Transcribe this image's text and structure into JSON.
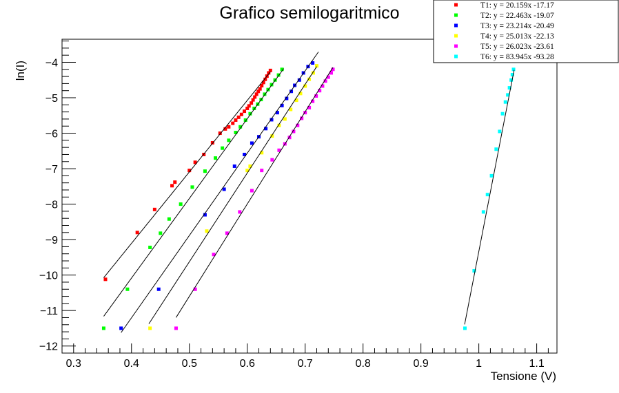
{
  "chart_data": {
    "type": "scatter",
    "title": "Grafico semilogaritmico",
    "xlabel": "Tensione (V)",
    "ylabel": "ln(I)",
    "xlim": [
      0.28,
      1.135
    ],
    "ylim": [
      -12.2,
      -3.35
    ],
    "xticks": [
      0.3,
      0.4,
      0.5,
      0.6,
      0.7,
      0.8,
      0.9,
      1.0,
      1.1
    ],
    "xtick_labels": [
      "0.3",
      "0.4",
      "0.5",
      "0.6",
      "0.7",
      "0.8",
      "0.9",
      "1",
      "1.1"
    ],
    "yticks": [
      -12,
      -11,
      -10,
      -9,
      -8,
      -7,
      -6,
      -5,
      -4
    ],
    "ytick_labels": [
      "−12",
      "−11",
      "−10",
      "−9",
      "−8",
      "−7",
      "−6",
      "−5",
      "−4"
    ],
    "grid": false,
    "legend_position": "top-right",
    "series": [
      {
        "name": "T1: y = 20.159x -17.17",
        "color": "#ff0000",
        "fit": {
          "slope": 20.159,
          "intercept": -17.17,
          "x_range": [
            0.352,
            0.64
          ]
        },
        "x": [
          0.355,
          0.41,
          0.44,
          0.47,
          0.475,
          0.5,
          0.51,
          0.525,
          0.54,
          0.553,
          0.562,
          0.568,
          0.575,
          0.58,
          0.585,
          0.59,
          0.595,
          0.6,
          0.603,
          0.607,
          0.61,
          0.613,
          0.616,
          0.619,
          0.622,
          0.625,
          0.628,
          0.631,
          0.634,
          0.637,
          0.64
        ],
        "y": [
          -10.12,
          -8.8,
          -8.15,
          -7.48,
          -7.38,
          -7.05,
          -6.82,
          -6.6,
          -6.27,
          -6.0,
          -5.88,
          -5.82,
          -5.72,
          -5.63,
          -5.55,
          -5.47,
          -5.38,
          -5.3,
          -5.23,
          -5.15,
          -5.06,
          -4.98,
          -4.9,
          -4.82,
          -4.75,
          -4.66,
          -4.57,
          -4.48,
          -4.39,
          -4.3,
          -4.23
        ]
      },
      {
        "name": "T2: y = 22.463x -19.07",
        "color": "#00ff00",
        "fit": {
          "slope": 22.463,
          "intercept": -19.07,
          "x_range": [
            0.352,
            0.663
          ]
        },
        "x": [
          0.352,
          0.393,
          0.432,
          0.45,
          0.465,
          0.485,
          0.505,
          0.527,
          0.545,
          0.557,
          0.568,
          0.58,
          0.588,
          0.597,
          0.605,
          0.612,
          0.618,
          0.624,
          0.63,
          0.636,
          0.642,
          0.648,
          0.654,
          0.66
        ],
        "y": [
          -11.5,
          -10.4,
          -9.22,
          -8.82,
          -8.42,
          -8.0,
          -7.52,
          -7.07,
          -6.7,
          -6.42,
          -6.2,
          -5.98,
          -5.82,
          -5.63,
          -5.45,
          -5.3,
          -5.18,
          -5.05,
          -4.9,
          -4.77,
          -4.63,
          -4.5,
          -4.36,
          -4.2
        ]
      },
      {
        "name": "T3: y = 23.214x -20.49",
        "color": "#0000ff",
        "fit": {
          "slope": 23.214,
          "intercept": -20.49,
          "x_range": [
            0.382,
            0.723
          ]
        },
        "x": [
          0.382,
          0.447,
          0.527,
          0.56,
          0.578,
          0.595,
          0.608,
          0.62,
          0.632,
          0.642,
          0.652,
          0.66,
          0.668,
          0.676,
          0.682,
          0.69,
          0.697,
          0.705,
          0.713
        ],
        "y": [
          -11.5,
          -10.4,
          -8.3,
          -7.58,
          -6.93,
          -6.6,
          -6.28,
          -6.1,
          -5.87,
          -5.62,
          -5.42,
          -5.22,
          -5.02,
          -4.82,
          -4.65,
          -4.5,
          -4.3,
          -4.12,
          -4.02
        ]
      },
      {
        "name": "T4: y = 25.013x -22.13",
        "color": "#ffff00",
        "fit": {
          "slope": 25.013,
          "intercept": -22.13,
          "x_range": [
            0.43,
            0.72
          ]
        },
        "x": [
          0.432,
          0.53,
          0.6,
          0.605,
          0.625,
          0.643,
          0.655,
          0.665,
          0.675,
          0.685,
          0.692,
          0.7,
          0.707,
          0.714,
          0.72
        ],
        "y": [
          -11.5,
          -8.76,
          -7.05,
          -6.93,
          -6.55,
          -6.08,
          -5.78,
          -5.6,
          -5.33,
          -5.07,
          -4.88,
          -4.67,
          -4.48,
          -4.3,
          -4.1
        ]
      },
      {
        "name": "T5: y = 26.023x -23.61",
        "color": "#ff00ff",
        "fit": {
          "slope": 26.023,
          "intercept": -23.61,
          "x_range": [
            0.477,
            0.748
          ]
        },
        "x": [
          0.477,
          0.51,
          0.542,
          0.565,
          0.587,
          0.608,
          0.625,
          0.643,
          0.655,
          0.665,
          0.673,
          0.68,
          0.687,
          0.694,
          0.7,
          0.707,
          0.713,
          0.719,
          0.725,
          0.73,
          0.735,
          0.74,
          0.745,
          0.748
        ],
        "y": [
          -11.5,
          -10.4,
          -9.42,
          -8.82,
          -8.22,
          -7.62,
          -7.05,
          -6.75,
          -6.48,
          -6.3,
          -6.12,
          -5.95,
          -5.78,
          -5.58,
          -5.42,
          -5.28,
          -5.1,
          -4.95,
          -4.8,
          -4.67,
          -4.53,
          -4.42,
          -4.3,
          -4.2
        ]
      },
      {
        "name": "T6: y = 83.945x -93.28",
        "color": "#00ffff",
        "fit": {
          "slope": 83.945,
          "intercept": -93.28,
          "x_range": [
            0.9755,
            1.061
          ]
        },
        "x": [
          0.976,
          0.992,
          1.008,
          1.015,
          1.022,
          1.03,
          1.036,
          1.041,
          1.046,
          1.05,
          1.053,
          1.056,
          1.058,
          1.06
        ],
        "y": [
          -11.5,
          -9.88,
          -8.22,
          -7.73,
          -7.2,
          -6.45,
          -5.95,
          -5.45,
          -5.12,
          -4.92,
          -4.72,
          -4.5,
          -4.35,
          -4.2
        ]
      }
    ]
  }
}
